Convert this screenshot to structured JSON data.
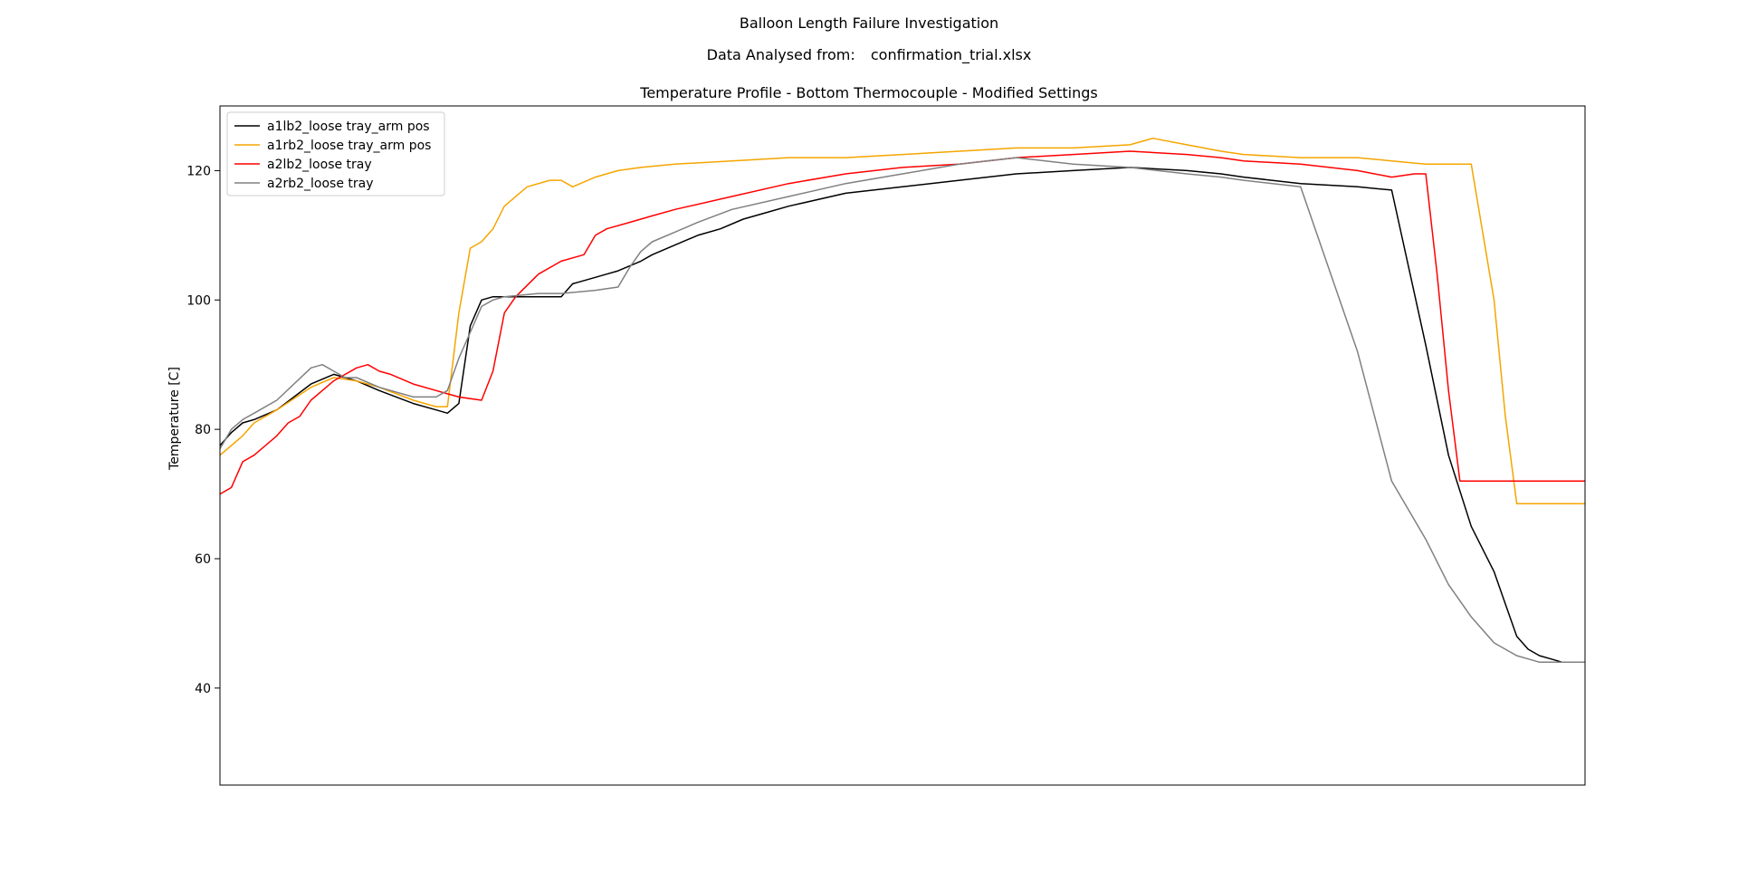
{
  "figure": {
    "suptitle": "Balloon Length Failure Investigation",
    "source_label": "Data Analysed from:",
    "source_file": "confirmation_trial.xlsx"
  },
  "chart_data": {
    "type": "line",
    "title": "Temperature Profile - Bottom Thermocouple - Modified Settings",
    "xlabel": "",
    "ylabel": "Temperature [C]",
    "ylim": [
      25,
      130
    ],
    "yticks": [
      40,
      60,
      80,
      100,
      120
    ],
    "xlim": [
      0,
      120
    ],
    "grid": false,
    "legend_position": "upper-left",
    "series": [
      {
        "name": "a1lb2_loose tray_arm pos",
        "color": "#000000",
        "x": [
          0,
          1,
          2,
          3,
          5,
          8,
          10,
          12,
          14,
          17,
          19,
          20,
          21,
          22,
          23,
          24,
          25,
          27,
          29,
          30,
          31,
          33,
          34,
          35,
          37,
          38,
          40,
          42,
          44,
          46,
          48,
          50,
          55,
          60,
          65,
          70,
          75,
          80,
          85,
          88,
          90,
          95,
          100,
          103,
          106,
          108,
          110,
          112,
          113,
          114,
          115,
          116,
          117,
          118,
          119,
          120
        ],
        "y": [
          77.5,
          79.5,
          81,
          81.5,
          83,
          87,
          88.5,
          87.5,
          86,
          84,
          83,
          82.5,
          84,
          96,
          100,
          100.5,
          100.5,
          100.5,
          100.5,
          100.5,
          102.5,
          103.5,
          104,
          104.5,
          106,
          107,
          108.5,
          110,
          111,
          112.5,
          113.5,
          114.5,
          116.5,
          117.5,
          118.5,
          119.5,
          120,
          120.5,
          120,
          119.5,
          119,
          118,
          117.5,
          117,
          93,
          76,
          65,
          58,
          53,
          48,
          46,
          45,
          44.5,
          44,
          44,
          44
        ]
      },
      {
        "name": "a1rb2_loose tray_arm pos",
        "color": "#f5a500",
        "x": [
          0,
          1,
          2,
          3,
          5,
          8,
          10,
          12,
          14,
          17,
          19,
          20,
          21,
          22,
          23,
          24,
          25,
          27,
          29,
          30,
          31,
          33,
          35,
          37,
          40,
          45,
          50,
          55,
          60,
          65,
          70,
          75,
          80,
          82,
          85,
          88,
          90,
          95,
          100,
          103,
          106,
          108,
          110,
          112,
          113,
          114,
          115,
          116,
          117,
          118,
          119,
          120
        ],
        "y": [
          76,
          77.5,
          79,
          81,
          83,
          86.5,
          88,
          87.5,
          86.5,
          84.5,
          83.5,
          83.5,
          98,
          108,
          109,
          111,
          114.5,
          117.5,
          118.5,
          118.5,
          117.5,
          119,
          120,
          120.5,
          121,
          121.5,
          122,
          122,
          122.5,
          123,
          123.5,
          123.5,
          124,
          125,
          124,
          123,
          122.5,
          122,
          122,
          121.5,
          121,
          121,
          121,
          100,
          82,
          68.5,
          68.5,
          68.5,
          68.5,
          68.5,
          68.5,
          68.5
        ]
      },
      {
        "name": "a2lb2_loose tray",
        "color": "#ff0000",
        "x": [
          0,
          1,
          2,
          3,
          5,
          6,
          7,
          8,
          9,
          10,
          12,
          13,
          14,
          15,
          17,
          19,
          20,
          21,
          23,
          24,
          25,
          26,
          28,
          30,
          32,
          33,
          34,
          36,
          38,
          40,
          45,
          50,
          55,
          60,
          65,
          70,
          75,
          80,
          85,
          88,
          90,
          95,
          100,
          103,
          105,
          106,
          107,
          108,
          109,
          110,
          112,
          113,
          114,
          115,
          116,
          117,
          118,
          119,
          120
        ],
        "y": [
          70,
          71,
          75,
          76,
          79,
          81,
          82,
          84.5,
          86,
          87.5,
          89.5,
          90,
          89,
          88.5,
          87,
          86,
          85.5,
          85,
          84.5,
          89,
          98,
          100.5,
          104,
          106,
          107,
          110,
          111,
          112,
          113,
          114,
          116,
          118,
          119.5,
          120.5,
          121,
          122,
          122.5,
          123,
          122.5,
          122,
          121.5,
          121,
          120,
          119,
          119.5,
          119.5,
          104,
          86,
          72,
          72,
          72,
          72,
          72,
          72,
          72,
          72,
          72,
          72,
          72
        ]
      },
      {
        "name": "a2rb2_loose tray",
        "color": "#808080",
        "x": [
          0,
          1,
          2,
          3,
          5,
          8,
          9,
          10,
          11,
          12,
          14,
          17,
          19,
          20,
          21,
          22,
          23,
          24,
          25,
          28,
          30,
          33,
          35,
          36,
          37,
          38,
          40,
          42,
          45,
          50,
          55,
          60,
          65,
          70,
          75,
          80,
          85,
          88,
          90,
          95,
          100,
          103,
          106,
          108,
          110,
          112,
          113,
          114,
          115,
          116,
          117,
          118,
          119,
          120
        ],
        "y": [
          77,
          80,
          81.5,
          82.5,
          84.5,
          89.5,
          90,
          89,
          88,
          88,
          86.5,
          85,
          85,
          86,
          91,
          95,
          99,
          100,
          100.5,
          101,
          101,
          101.5,
          102,
          105,
          107.5,
          109,
          110.5,
          112,
          114,
          116,
          118,
          119.5,
          121,
          122,
          121,
          120.5,
          119.5,
          119,
          118.5,
          117.5,
          92,
          72,
          63,
          56,
          51,
          47,
          46,
          45,
          44.5,
          44,
          44,
          44,
          44,
          44
        ]
      }
    ]
  }
}
